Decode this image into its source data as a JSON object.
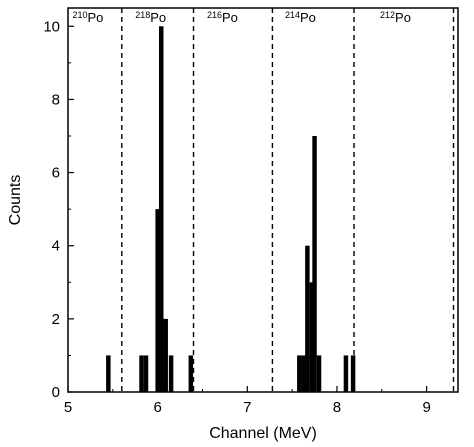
{
  "chart_data": {
    "type": "bar",
    "xlabel": "Channel (MeV)",
    "ylabel": "Counts",
    "xlim": [
      5,
      9.35
    ],
    "ylim": [
      0,
      10.5
    ],
    "x_ticks": [
      "5",
      "6",
      "7",
      "8",
      "9"
    ],
    "y_ticks": [
      "0",
      "2",
      "4",
      "6",
      "8",
      "10"
    ],
    "bin_width": 0.05,
    "bars": [
      {
        "x": 5.45,
        "count": 1
      },
      {
        "x": 5.82,
        "count": 1
      },
      {
        "x": 5.87,
        "count": 1
      },
      {
        "x": 6.0,
        "count": 5
      },
      {
        "x": 6.04,
        "count": 10
      },
      {
        "x": 6.09,
        "count": 2
      },
      {
        "x": 6.15,
        "count": 1
      },
      {
        "x": 6.37,
        "count": 1
      },
      {
        "x": 7.58,
        "count": 1
      },
      {
        "x": 7.63,
        "count": 1
      },
      {
        "x": 7.67,
        "count": 4
      },
      {
        "x": 7.72,
        "count": 3
      },
      {
        "x": 7.75,
        "count": 7
      },
      {
        "x": 7.8,
        "count": 1
      },
      {
        "x": 8.1,
        "count": 1
      },
      {
        "x": 8.18,
        "count": 1
      }
    ],
    "region_boundaries": [
      5.6,
      6.4,
      7.28,
      8.19,
      9.3
    ],
    "region_labels": [
      {
        "mass": "210",
        "element": "Po",
        "x": 5.05
      },
      {
        "mass": "218",
        "element": "Po",
        "x": 5.75
      },
      {
        "mass": "216",
        "element": "Po",
        "x": 6.55
      },
      {
        "mass": "214",
        "element": "Po",
        "x": 7.42
      },
      {
        "mass": "212",
        "element": "Po",
        "x": 8.48
      }
    ],
    "grid": false
  }
}
